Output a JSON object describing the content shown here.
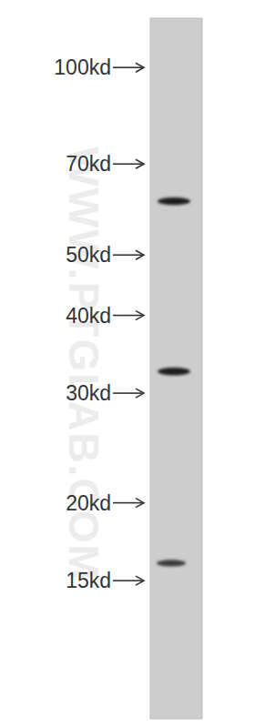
{
  "chart_data": {
    "type": "western_blot",
    "annotations": [
      "WWW.PTGLAB.COM"
    ],
    "values": [
      61,
      32.5,
      16
    ],
    "log": "y",
    "ylim": [
      9,
      120
    ],
    "yticks": [
      {
        "value": 100,
        "label": "100kd"
      },
      {
        "value": 70,
        "label": "70kd"
      },
      {
        "value": 50,
        "label": "50kd"
      },
      {
        "value": 40,
        "label": "40kd"
      },
      {
        "value": 30,
        "label": "30kd"
      },
      {
        "value": 20,
        "label": "20kd"
      },
      {
        "value": 15,
        "label": "15kd"
      }
    ],
    "tick_labels": "y"
  }
}
